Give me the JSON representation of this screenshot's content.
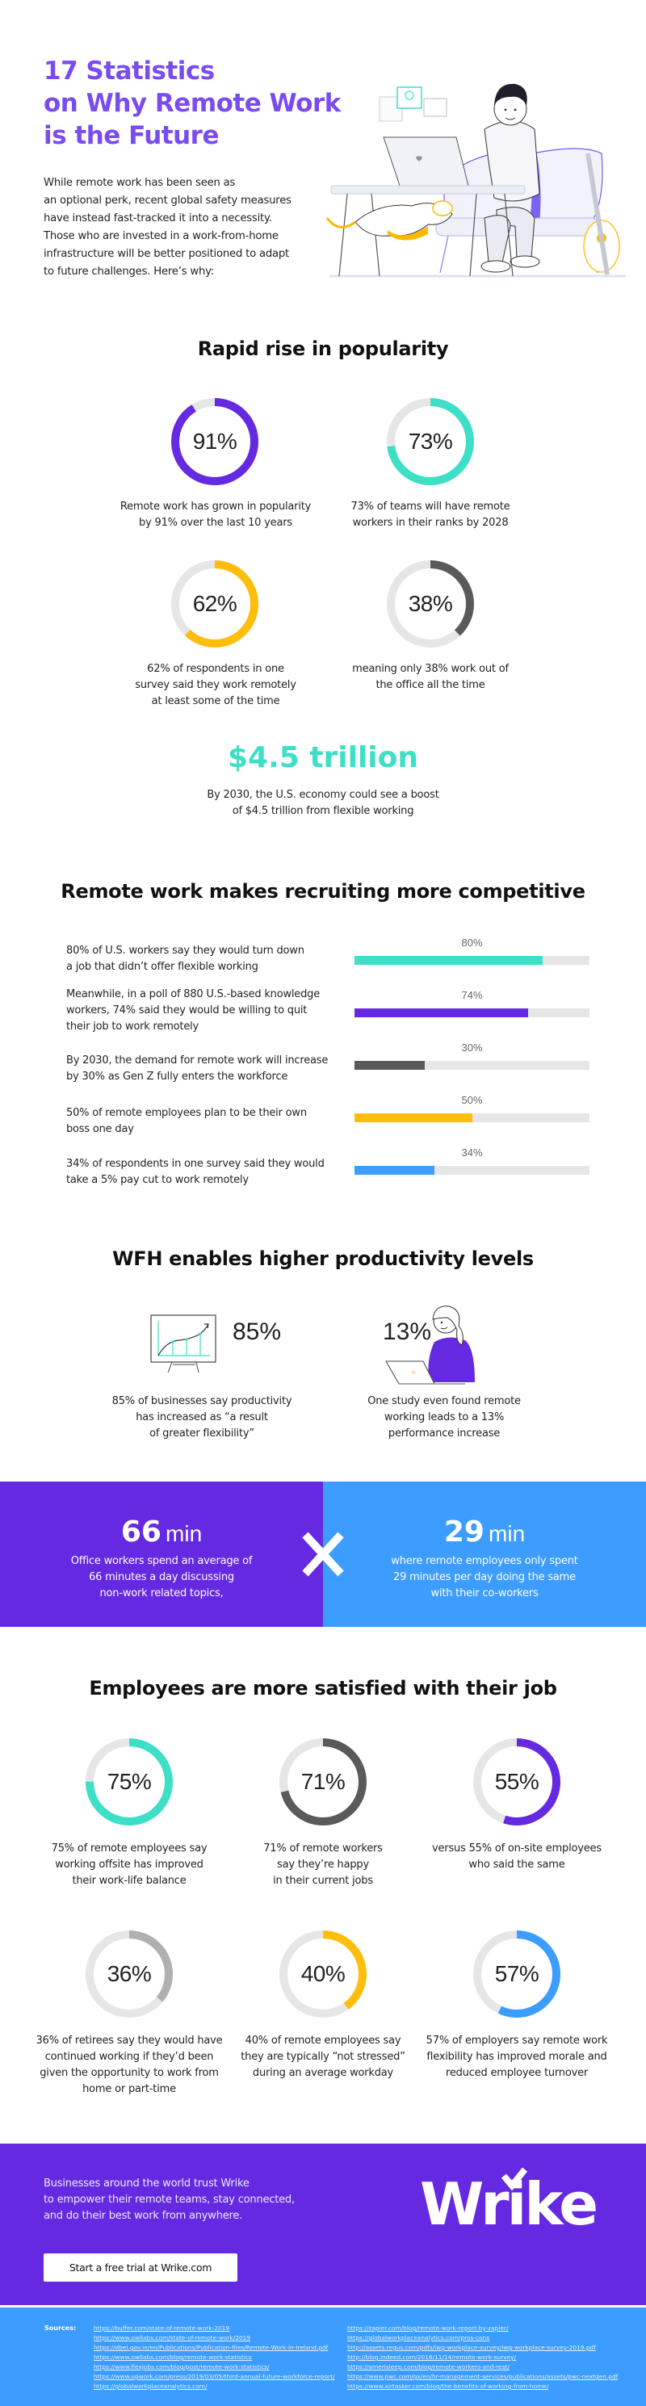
{
  "hero": {
    "title_lines": [
      "17 Statistics",
      "on Why Remote Work",
      "is the Future"
    ],
    "intro": "While remote work has been seen as\nan optional perk, recent global safety measures\nhave instead fast-tracked it into a necessity.\nThose who are invested in a work-from-home\ninfrastructure will be better positioned to adapt\nto future challenges. Here’s why:",
    "illustration": "man-working-on-laptop-with-dog-illustration"
  },
  "popularity": {
    "title": "Rapid rise in popularity",
    "rings": [
      {
        "value": 91,
        "label": "91%",
        "color": "#6529e1",
        "caption": "Remote work has grown in popularity\nby 91% over the last 10 years"
      },
      {
        "value": 73,
        "label": "73%",
        "color": "#3ddfc7",
        "caption": "73% of teams will have remote\nworkers in their ranks by 2028"
      },
      {
        "value": 62,
        "label": "62%",
        "color": "#ffbe0b",
        "caption": "62% of respondents in one\nsurvey said they work remotely\nat least some of the time"
      },
      {
        "value": 38,
        "label": "38%",
        "color": "#5a5a5a",
        "caption": "meaning only 38% work out of\nthe office all the time"
      }
    ],
    "highlight_value": "$4.5 trillion",
    "highlight_caption": "By 2030, the U.S. economy could see a boost\nof $4.5 trillion from flexible working"
  },
  "recruiting": {
    "title": "Remote work makes recruiting more competitive",
    "bars": [
      {
        "text": "80% of U.S. workers say they would turn down\na job that didn’t offer flexible working",
        "value": 80,
        "label": "80%",
        "color": "#3ddfc7"
      },
      {
        "text": "Meanwhile, in a poll of 880 U.S.-based knowledge\nworkers, 74% said they would be willing to quit\ntheir job to work remotely",
        "value": 74,
        "label": "74%",
        "color": "#6529e1"
      },
      {
        "text": "By 2030, the demand for remote work will increase\nby 30% as Gen Z fully enters the workforce",
        "value": 30,
        "label": "30%",
        "color": "#5a5a5a"
      },
      {
        "text": "50% of remote employees plan to be their own\nboss one day",
        "value": 50,
        "label": "50%",
        "color": "#ffbe0b"
      },
      {
        "text": "34% of respondents in one survey said they would\ntake a 5% pay cut to work remotely",
        "value": 34,
        "label": "34%",
        "color": "#3c9dff"
      }
    ]
  },
  "productivity": {
    "title": "WFH enables higher productivity levels",
    "stats": [
      {
        "label": "85%",
        "caption": "85% of businesses say productivity\nhas increased as “a result\nof greater flexibility”",
        "icon": "growth-chart-easel-icon"
      },
      {
        "label": "13%",
        "caption": "One study even found remote\nworking leads to a 13%\nperformance increase",
        "icon": "woman-at-laptop-icon"
      }
    ]
  },
  "comparison": {
    "left": {
      "number": "66",
      "unit": "min",
      "text": "Office workers spend an average of\n66 minutes a day discussing\nnon-work related topics,",
      "color": "#6529e1"
    },
    "right": {
      "number": "29",
      "unit": "min",
      "text": "where remote employees only spent\n29 minutes per day doing the same\nwith their co-workers",
      "color": "#3c9dff"
    },
    "divider_icon": "x-icon"
  },
  "satisfaction": {
    "title": "Employees are more satisfied with their job",
    "rings": [
      {
        "value": 75,
        "label": "75%",
        "color": "#3ddfc7",
        "caption": "75% of remote employees say\nworking offsite has improved\ntheir work-life balance"
      },
      {
        "value": 71,
        "label": "71%",
        "color": "#5a5a5a",
        "caption": "71% of remote workers\nsay they’re happy\nin their current jobs"
      },
      {
        "value": 55,
        "label": "55%",
        "color": "#6529e1",
        "caption": "versus 55% of on-site employees\nwho said the same"
      },
      {
        "value": 36,
        "label": "36%",
        "color": "#b0b0b0",
        "caption": "36% of retirees say they would have\ncontinued working if they’d been\ngiven the opportunity to work from\nhome or part-time"
      },
      {
        "value": 40,
        "label": "40%",
        "color": "#ffbe0b",
        "caption": "40% of remote employees say\nthey are typically “not stressed”\nduring an average workday"
      },
      {
        "value": 57,
        "label": "57%",
        "color": "#3c9dff",
        "caption": "57% of employers say remote work\nflexibility has improved morale and\nreduced employee turnover"
      }
    ]
  },
  "cta": {
    "text": "Businesses around the world trust Wrike\nto empower their remote teams, stay connected,\nand do their best work from anywhere.",
    "button_label": "Start a free trial at Wrike.com",
    "logo_text": "Wrike"
  },
  "sources": {
    "label": "Sources:",
    "left": [
      "https://buffer.com/state-of-remote-work-2019",
      "https://www.owllabs.com/state-of-remote-work/2019",
      "https://dbei.gov.ie/en/Publications/Publication-files/Remote-Work-in-Ireland.pdf",
      "https://www.owllabs.com/blog/remote-work-statistics",
      "https://www.flexjobs.com/blog/post/remote-work-statistics/",
      "https://www.upwork.com/press/2019/03/05/third-annual-future-workforce-report/",
      "https://globalworkplaceanalytics.com/"
    ],
    "right": [
      "https://zapier.com/blog/remote-work-report-by-zapier/",
      "https://globalworkplaceanalytics.com/pros-cons",
      "http://assets.regus.com/pdfs/iwg-workplace-survey/iwg-workplace-survey-2019.pdf",
      "http://blog.indeed.com/2018/11/14/remote-work-survey/",
      "https://amerisleep.com/blog/remote-workers-and-rest/",
      "https://www.pwc.com/gx/en/hr-management-services/publications/assets/pwc-nextgen.pdf",
      "https://www.airtasker.com/blog/the-benefits-of-working-from-home/"
    ]
  },
  "colors": {
    "purple": "#6529e1",
    "title_purple": "#7a4cf0",
    "teal": "#3ddfc7",
    "yellow": "#ffbe0b",
    "gray": "#5a5a5a",
    "blue": "#3c9dff",
    "track": "#e6e6e6"
  }
}
